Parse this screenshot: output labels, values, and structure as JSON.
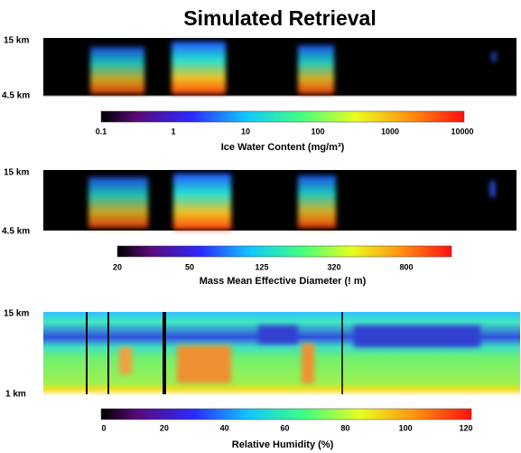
{
  "title": "Simulated Retrieval",
  "panels": [
    {
      "top_label": "15 km",
      "bottom_label": "4.5 km",
      "colorbar_ticks": [
        "0.1",
        "1",
        "10",
        "100",
        "1000",
        "10000"
      ],
      "caption": "Ice Water Content  (mg/m³)"
    },
    {
      "top_label": "15 km",
      "bottom_label": "4.5 km",
      "colorbar_ticks": [
        "20",
        "50",
        "125",
        "320",
        "800"
      ],
      "caption": "Mass Mean Effective Diameter (! m)"
    },
    {
      "top_label": "15 km",
      "bottom_label": "1 km",
      "colorbar_ticks": [
        "0",
        "20",
        "40",
        "60",
        "80",
        "100",
        "120"
      ],
      "caption": "Relative Humidity (%)"
    }
  ]
}
